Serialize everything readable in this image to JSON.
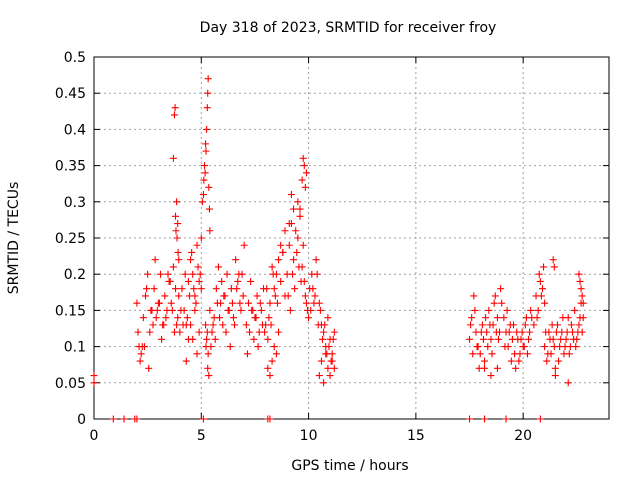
{
  "chart_data": {
    "type": "scatter",
    "title": "Day 318 of 2023, SRMTID for receiver froy",
    "xlabel": "GPS time / hours",
    "ylabel": "SRMTID / TECUs",
    "xlim": [
      0,
      24
    ],
    "ylim": [
      0,
      0.5
    ],
    "xticks": [
      0,
      5,
      10,
      15,
      20
    ],
    "xtick_labels": [
      "0",
      "5",
      "10",
      "15",
      "20"
    ],
    "yticks": [
      0,
      0.05,
      0.1,
      0.15,
      0.2,
      0.25,
      0.3,
      0.35,
      0.4,
      0.45,
      0.5
    ],
    "ytick_labels": [
      "0",
      "0.05",
      "0.1",
      "0.15",
      "0.2",
      "0.25",
      "0.3",
      "0.35",
      "0.4",
      "0.45",
      "0.5"
    ],
    "grid": true,
    "marker": "plus",
    "color": "#ff0000",
    "series": [
      {
        "name": "SRMTID",
        "x": [
          0.0,
          0.0,
          0.9,
          1.4,
          1.9,
          2.0,
          5.1,
          8.1,
          8.2,
          17.5,
          18.2,
          19.2,
          20.8,
          2.0,
          2.1,
          2.2,
          2.3,
          2.4,
          2.5,
          2.6,
          2.7,
          2.8,
          2.9,
          3.0,
          3.1,
          3.2,
          3.3,
          3.4,
          3.5,
          3.6,
          3.7,
          3.8,
          3.9,
          2.05,
          2.15,
          2.35,
          2.55,
          2.75,
          2.95,
          3.15,
          3.35,
          3.55,
          3.75,
          3.95,
          2.25,
          2.45,
          2.65,
          2.85,
          3.05,
          3.25,
          3.45,
          3.65,
          3.85,
          3.8,
          3.82,
          3.85,
          3.87,
          3.9,
          3.92,
          3.95,
          3.7,
          3.75,
          3.78,
          4.0,
          4.1,
          4.2,
          4.3,
          4.4,
          4.5,
          4.6,
          4.7,
          4.8,
          4.9,
          5.0,
          4.05,
          4.15,
          4.25,
          4.35,
          4.45,
          4.55,
          4.65,
          4.75,
          4.85,
          4.95,
          4.5,
          4.6,
          4.7,
          4.8,
          4.9,
          4.4,
          4.3,
          5.0,
          5.05,
          5.1,
          5.12,
          5.15,
          5.18,
          5.2,
          5.22,
          5.25,
          5.28,
          5.3,
          5.32,
          5.35,
          5.38,
          5.4,
          5.3,
          5.32,
          5.35,
          5.25,
          5.2,
          5.22,
          5.28,
          5.4,
          5.5,
          5.6,
          5.7,
          5.8,
          5.9,
          6.0,
          6.1,
          6.2,
          6.3,
          6.4,
          6.5,
          6.6,
          6.7,
          6.8,
          6.9,
          7.0,
          5.45,
          5.55,
          5.65,
          5.75,
          5.85,
          5.95,
          6.05,
          6.15,
          6.25,
          6.35,
          6.45,
          6.55,
          6.65,
          6.75,
          6.85,
          6.95,
          7.1,
          7.2,
          7.3,
          7.4,
          7.5,
          7.6,
          7.7,
          7.8,
          7.9,
          8.0,
          8.1,
          8.2,
          8.3,
          8.4,
          8.5,
          8.6,
          8.7,
          8.8,
          8.9,
          7.15,
          7.25,
          7.35,
          7.45,
          7.55,
          7.65,
          7.75,
          7.85,
          7.95,
          8.05,
          8.15,
          8.25,
          8.35,
          8.45,
          8.55,
          8.1,
          8.2,
          8.3,
          8.4,
          8.5,
          8.6,
          9.0,
          9.1,
          9.2,
          9.3,
          9.4,
          9.5,
          9.6,
          9.7,
          9.8,
          9.9,
          10.0,
          10.1,
          10.2,
          10.3,
          10.4,
          10.5,
          10.6,
          10.7,
          10.8,
          10.9,
          11.0,
          11.1,
          11.2,
          9.05,
          9.15,
          9.25,
          9.35,
          9.45,
          9.55,
          9.65,
          9.75,
          9.85,
          9.95,
          10.05,
          10.15,
          10.25,
          10.35,
          10.45,
          10.55,
          10.65,
          10.75,
          10.85,
          10.95,
          11.05,
          11.15,
          9.5,
          9.6,
          9.7,
          9.75,
          9.8,
          9.85,
          9.9,
          9.3,
          9.2,
          9.1,
          8.9,
          8.8,
          8.7,
          10.5,
          10.6,
          10.7,
          10.8,
          10.9,
          11.0,
          11.1,
          11.2,
          17.5,
          17.6,
          17.7,
          17.8,
          17.9,
          18.0,
          18.1,
          18.2,
          18.3,
          18.4,
          18.5,
          18.6,
          18.7,
          18.8,
          18.9,
          19.0,
          17.55,
          17.65,
          17.75,
          17.85,
          17.95,
          18.05,
          18.15,
          18.25,
          18.35,
          18.45,
          18.55,
          18.65,
          18.75,
          18.85,
          18.95,
          19.1,
          19.2,
          19.3,
          19.4,
          19.5,
          19.6,
          19.7,
          19.8,
          19.9,
          20.0,
          20.1,
          20.2,
          20.3,
          20.4,
          19.15,
          19.25,
          19.35,
          19.45,
          19.55,
          19.65,
          19.75,
          19.85,
          19.95,
          20.05,
          20.15,
          20.25,
          20.35,
          20.5,
          20.6,
          20.7,
          20.8,
          20.9,
          21.0,
          20.65,
          20.75,
          20.85,
          20.95,
          21.0,
          21.1,
          21.2,
          21.3,
          21.4,
          21.5,
          21.6,
          21.7,
          21.8,
          21.9,
          22.0,
          22.1,
          22.2,
          22.3,
          22.4,
          22.5,
          22.6,
          22.7,
          22.8,
          21.05,
          21.15,
          21.25,
          21.35,
          21.45,
          21.55,
          21.65,
          21.75,
          21.85,
          21.95,
          22.05,
          22.15,
          22.25,
          22.35,
          22.45,
          22.55,
          22.65,
          22.75,
          21.4,
          21.45,
          22.6,
          22.65,
          22.7,
          22.75,
          22.8,
          18.2,
          18.5,
          18.8,
          21.5,
          22.1
        ],
        "y": [
          0.06,
          0.05,
          0.0,
          0.0,
          0.0,
          0.0,
          0.0,
          0.0,
          0.0,
          0.0,
          0.0,
          0.0,
          0.0,
          0.16,
          0.1,
          0.09,
          0.14,
          0.17,
          0.2,
          0.12,
          0.15,
          0.18,
          0.14,
          0.16,
          0.2,
          0.13,
          0.17,
          0.15,
          0.19,
          0.16,
          0.21,
          0.18,
          0.14,
          0.12,
          0.08,
          0.1,
          0.07,
          0.13,
          0.15,
          0.11,
          0.14,
          0.19,
          0.12,
          0.17,
          0.1,
          0.18,
          0.15,
          0.22,
          0.16,
          0.13,
          0.2,
          0.15,
          0.13,
          0.28,
          0.26,
          0.3,
          0.25,
          0.27,
          0.23,
          0.22,
          0.36,
          0.42,
          0.43,
          0.12,
          0.18,
          0.15,
          0.13,
          0.19,
          0.22,
          0.2,
          0.17,
          0.24,
          0.19,
          0.18,
          0.15,
          0.13,
          0.2,
          0.14,
          0.17,
          0.23,
          0.18,
          0.16,
          0.21,
          0.2,
          0.13,
          0.11,
          0.15,
          0.09,
          0.12,
          0.11,
          0.08,
          0.25,
          0.3,
          0.31,
          0.33,
          0.35,
          0.34,
          0.38,
          0.37,
          0.4,
          0.43,
          0.45,
          0.47,
          0.32,
          0.29,
          0.26,
          0.07,
          0.09,
          0.06,
          0.11,
          0.13,
          0.1,
          0.12,
          0.15,
          0.12,
          0.14,
          0.18,
          0.21,
          0.16,
          0.13,
          0.17,
          0.2,
          0.15,
          0.18,
          0.14,
          0.22,
          0.19,
          0.16,
          0.2,
          0.24,
          0.1,
          0.13,
          0.11,
          0.16,
          0.14,
          0.19,
          0.17,
          0.12,
          0.15,
          0.1,
          0.16,
          0.13,
          0.18,
          0.2,
          0.15,
          0.17,
          0.13,
          0.16,
          0.19,
          0.15,
          0.14,
          0.17,
          0.12,
          0.15,
          0.18,
          0.13,
          0.11,
          0.16,
          0.21,
          0.18,
          0.2,
          0.22,
          0.19,
          0.23,
          0.17,
          0.09,
          0.12,
          0.15,
          0.11,
          0.14,
          0.1,
          0.16,
          0.13,
          0.12,
          0.18,
          0.14,
          0.13,
          0.2,
          0.17,
          0.16,
          0.07,
          0.06,
          0.08,
          0.1,
          0.09,
          0.12,
          0.2,
          0.24,
          0.27,
          0.22,
          0.26,
          0.25,
          0.28,
          0.21,
          0.19,
          0.16,
          0.14,
          0.15,
          0.18,
          0.17,
          0.2,
          0.16,
          0.13,
          0.12,
          0.1,
          0.14,
          0.11,
          0.09,
          0.12,
          0.17,
          0.15,
          0.2,
          0.18,
          0.23,
          0.21,
          0.19,
          0.24,
          0.17,
          0.15,
          0.18,
          0.2,
          0.16,
          0.22,
          0.13,
          0.15,
          0.11,
          0.13,
          0.09,
          0.1,
          0.08,
          0.11,
          0.3,
          0.29,
          0.33,
          0.36,
          0.35,
          0.32,
          0.34,
          0.29,
          0.31,
          0.27,
          0.26,
          0.23,
          0.24,
          0.06,
          0.08,
          0.05,
          0.09,
          0.07,
          0.06,
          0.08,
          0.07,
          0.11,
          0.14,
          0.17,
          0.12,
          0.1,
          0.09,
          0.13,
          0.08,
          0.12,
          0.15,
          0.11,
          0.13,
          0.17,
          0.14,
          0.12,
          0.16,
          0.13,
          0.09,
          0.15,
          0.1,
          0.07,
          0.12,
          0.11,
          0.14,
          0.1,
          0.13,
          0.09,
          0.16,
          0.12,
          0.11,
          0.18,
          0.14,
          0.12,
          0.1,
          0.13,
          0.11,
          0.09,
          0.12,
          0.08,
          0.11,
          0.1,
          0.13,
          0.09,
          0.12,
          0.14,
          0.1,
          0.15,
          0.12,
          0.08,
          0.13,
          0.07,
          0.11,
          0.09,
          0.12,
          0.1,
          0.14,
          0.11,
          0.15,
          0.13,
          0.17,
          0.15,
          0.19,
          0.18,
          0.16,
          0.14,
          0.2,
          0.17,
          0.21,
          0.1,
          0.08,
          0.12,
          0.09,
          0.11,
          0.07,
          0.13,
          0.1,
          0.12,
          0.09,
          0.11,
          0.14,
          0.1,
          0.12,
          0.15,
          0.11,
          0.13,
          0.16,
          0.14,
          0.12,
          0.09,
          0.11,
          0.13,
          0.1,
          0.12,
          0.08,
          0.11,
          0.14,
          0.1,
          0.12,
          0.09,
          0.13,
          0.11,
          0.1,
          0.12,
          0.14,
          0.12,
          0.22,
          0.21,
          0.2,
          0.19,
          0.18,
          0.17,
          0.16,
          0.07,
          0.06,
          0.07,
          0.06,
          0.05
        ]
      }
    ]
  }
}
